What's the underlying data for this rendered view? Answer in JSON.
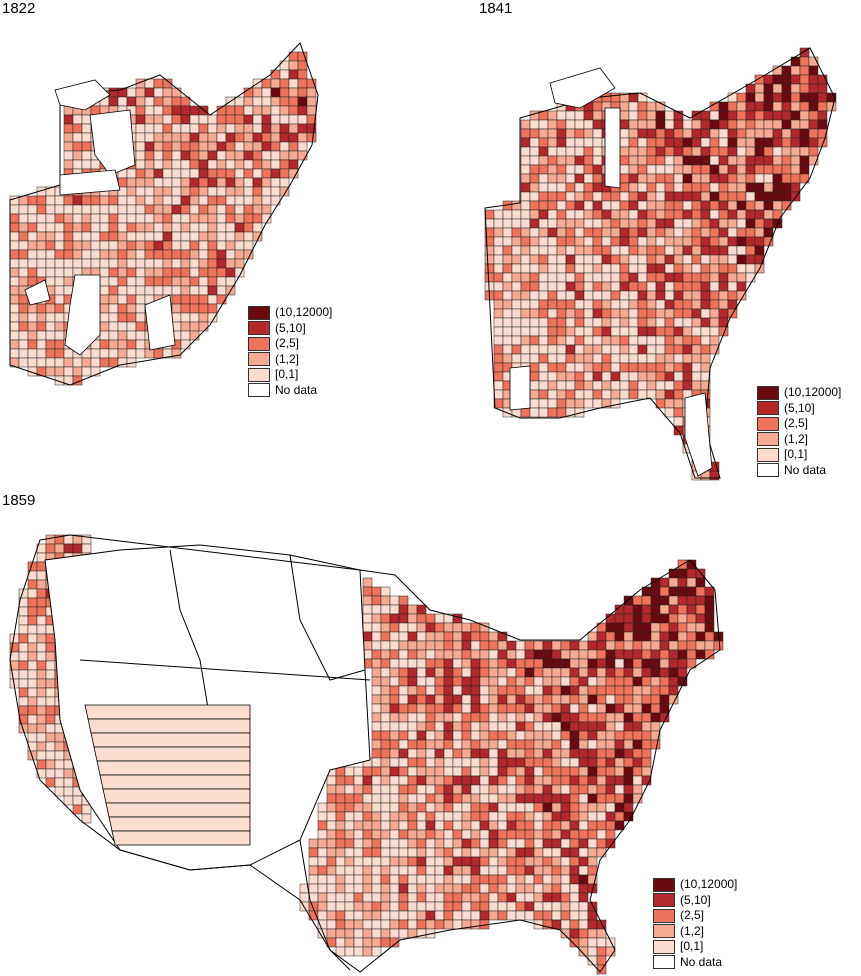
{
  "maps": [
    {
      "title": "1822"
    },
    {
      "title": "1841"
    },
    {
      "title": "1859"
    }
  ],
  "legend": {
    "items": [
      {
        "label": "(10,12000]",
        "color": "#6b0a0e"
      },
      {
        "label": "(5,10]",
        "color": "#b3282a"
      },
      {
        "label": "(2,5]",
        "color": "#ee735a"
      },
      {
        "label": "(1,2]",
        "color": "#f6aa92"
      },
      {
        "label": "[0,1]",
        "color": "#fbdccf"
      },
      {
        "label": "No data",
        "color": "#ffffff"
      }
    ]
  }
}
